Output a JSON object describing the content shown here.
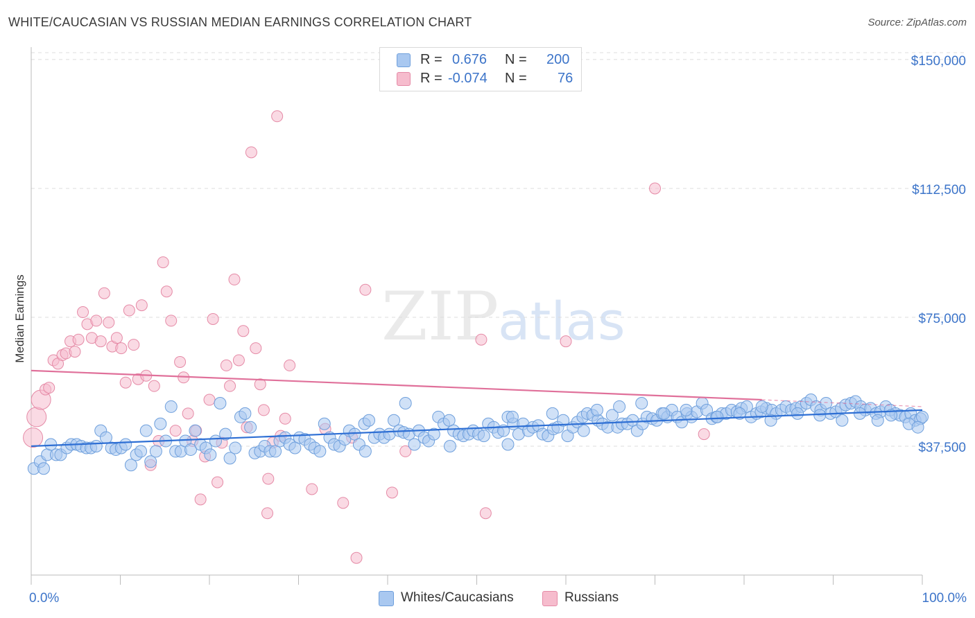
{
  "title": "WHITE/CAUCASIAN VS RUSSIAN MEDIAN EARNINGS CORRELATION CHART",
  "source": "Source: ZipAtlas.com",
  "watermark": {
    "zip": "ZIP",
    "atlas": "atlas"
  },
  "colors": {
    "blue_fill": "#a9c8f0",
    "blue_stroke": "#6e9fdc",
    "blue_line": "#2e6fd4",
    "pink_fill": "#f6bccd",
    "pink_stroke": "#e58aa6",
    "pink_line": "#e0709a",
    "tick_text": "#3c74c9",
    "grid": "#dcdcdc"
  },
  "legend": {
    "r_label": "R =",
    "n_label": "N =",
    "rows": [
      {
        "r": "0.676",
        "n": "200",
        "color": "blue"
      },
      {
        "r": "-0.074",
        "n": "76",
        "color": "pink"
      }
    ]
  },
  "bottom_legend": [
    {
      "label": "Whites/Caucasians",
      "color": "blue"
    },
    {
      "label": "Russians",
      "color": "pink"
    }
  ],
  "chart_data": {
    "type": "scatter",
    "title": "WHITE/CAUCASIAN VS RUSSIAN MEDIAN EARNINGS CORRELATION CHART",
    "xlabel": "",
    "ylabel": "Median Earnings",
    "xlim": [
      0,
      100
    ],
    "ylim": [
      0,
      152000
    ],
    "x_tick_labels": [
      "0.0%",
      "100.0%"
    ],
    "y_ticks": [
      37500,
      75000,
      112500,
      150000
    ],
    "y_tick_labels": [
      "$37,500",
      "$75,000",
      "$112,500",
      "$150,000"
    ],
    "grid": true,
    "legend_position": "top-center",
    "series": [
      {
        "name": "Whites/Caucasians",
        "r": 0.676,
        "n": 200,
        "trend": [
          [
            0,
            37500
          ],
          [
            100,
            48000
          ]
        ],
        "points": [
          [
            0.3,
            31000
          ],
          [
            1.0,
            33000
          ],
          [
            1.4,
            31000
          ],
          [
            1.8,
            35000
          ],
          [
            2.2,
            38000
          ],
          [
            2.8,
            35000
          ],
          [
            3.3,
            35000
          ],
          [
            4.0,
            37000
          ],
          [
            4.5,
            38000
          ],
          [
            5.1,
            38000
          ],
          [
            5.6,
            37500
          ],
          [
            6.2,
            37000
          ],
          [
            6.7,
            37000
          ],
          [
            7.3,
            37500
          ],
          [
            7.8,
            42000
          ],
          [
            8.4,
            40000
          ],
          [
            9.0,
            37000
          ],
          [
            9.5,
            36500
          ],
          [
            10.1,
            37000
          ],
          [
            10.6,
            38000
          ],
          [
            11.2,
            32000
          ],
          [
            11.8,
            35000
          ],
          [
            12.3,
            36000
          ],
          [
            12.9,
            42000
          ],
          [
            13.4,
            33000
          ],
          [
            14.0,
            36000
          ],
          [
            14.5,
            44000
          ],
          [
            15.1,
            39000
          ],
          [
            15.7,
            49000
          ],
          [
            16.2,
            36000
          ],
          [
            16.8,
            36000
          ],
          [
            17.3,
            39000
          ],
          [
            17.9,
            36500
          ],
          [
            18.4,
            42000
          ],
          [
            19.0,
            38000
          ],
          [
            19.6,
            37000
          ],
          [
            20.1,
            35000
          ],
          [
            20.7,
            39000
          ],
          [
            21.2,
            50000
          ],
          [
            21.8,
            41000
          ],
          [
            22.3,
            34000
          ],
          [
            22.9,
            37000
          ],
          [
            23.5,
            46000
          ],
          [
            24.0,
            47000
          ],
          [
            24.6,
            43000
          ],
          [
            25.1,
            35500
          ],
          [
            25.7,
            36000
          ],
          [
            26.2,
            37500
          ],
          [
            26.8,
            36000
          ],
          [
            27.4,
            36000
          ],
          [
            27.9,
            39000
          ],
          [
            28.5,
            40000
          ],
          [
            29.0,
            38000
          ],
          [
            29.6,
            37000
          ],
          [
            30.1,
            40000
          ],
          [
            30.7,
            39500
          ],
          [
            31.3,
            38000
          ],
          [
            31.8,
            37000
          ],
          [
            32.4,
            36000
          ],
          [
            32.9,
            44000
          ],
          [
            33.5,
            40000
          ],
          [
            34.0,
            38000
          ],
          [
            34.6,
            37500
          ],
          [
            35.2,
            39500
          ],
          [
            35.7,
            42000
          ],
          [
            36.3,
            41000
          ],
          [
            36.8,
            38000
          ],
          [
            37.4,
            44000
          ],
          [
            37.9,
            45000
          ],
          [
            38.5,
            40000
          ],
          [
            39.1,
            41000
          ],
          [
            39.6,
            40000
          ],
          [
            40.2,
            41000
          ],
          [
            40.7,
            45000
          ],
          [
            41.3,
            42000
          ],
          [
            41.8,
            41500
          ],
          [
            42.4,
            41000
          ],
          [
            43.0,
            38000
          ],
          [
            43.5,
            42000
          ],
          [
            44.1,
            40000
          ],
          [
            44.6,
            39000
          ],
          [
            45.2,
            41000
          ],
          [
            45.7,
            46000
          ],
          [
            46.3,
            44000
          ],
          [
            46.9,
            45000
          ],
          [
            47.4,
            42000
          ],
          [
            48.0,
            41000
          ],
          [
            48.5,
            40500
          ],
          [
            49.1,
            41000
          ],
          [
            49.6,
            42000
          ],
          [
            50.2,
            41000
          ],
          [
            50.8,
            40500
          ],
          [
            51.3,
            44000
          ],
          [
            51.9,
            43000
          ],
          [
            52.4,
            41500
          ],
          [
            53.0,
            42000
          ],
          [
            53.5,
            46000
          ],
          [
            54.1,
            44000
          ],
          [
            54.7,
            41000
          ],
          [
            55.2,
            44000
          ],
          [
            55.8,
            42000
          ],
          [
            56.3,
            43000
          ],
          [
            56.9,
            43500
          ],
          [
            57.4,
            41000
          ],
          [
            58.0,
            40500
          ],
          [
            58.6,
            42500
          ],
          [
            59.1,
            43000
          ],
          [
            59.7,
            45000
          ],
          [
            60.2,
            40500
          ],
          [
            60.8,
            43000
          ],
          [
            61.3,
            44500
          ],
          [
            61.9,
            46000
          ],
          [
            62.4,
            47000
          ],
          [
            63.0,
            46500
          ],
          [
            63.6,
            45000
          ],
          [
            64.1,
            44000
          ],
          [
            64.7,
            43000
          ],
          [
            65.2,
            46500
          ],
          [
            65.8,
            43000
          ],
          [
            66.3,
            44000
          ],
          [
            66.9,
            44000
          ],
          [
            67.5,
            45000
          ],
          [
            68.0,
            42000
          ],
          [
            68.6,
            44000
          ],
          [
            69.1,
            46000
          ],
          [
            69.7,
            45500
          ],
          [
            70.2,
            45000
          ],
          [
            70.8,
            47000
          ],
          [
            71.4,
            46000
          ],
          [
            71.9,
            48000
          ],
          [
            72.5,
            46000
          ],
          [
            73.0,
            44500
          ],
          [
            73.6,
            47000
          ],
          [
            74.1,
            46000
          ],
          [
            74.7,
            47500
          ],
          [
            75.3,
            50000
          ],
          [
            75.8,
            48000
          ],
          [
            76.4,
            45500
          ],
          [
            76.9,
            46000
          ],
          [
            77.5,
            47000
          ],
          [
            78.0,
            47000
          ],
          [
            78.6,
            48000
          ],
          [
            79.2,
            47500
          ],
          [
            79.7,
            48500
          ],
          [
            80.3,
            49000
          ],
          [
            80.8,
            46000
          ],
          [
            81.4,
            47000
          ],
          [
            81.9,
            47500
          ],
          [
            82.5,
            48500
          ],
          [
            83.1,
            48000
          ],
          [
            83.6,
            47000
          ],
          [
            84.2,
            48000
          ],
          [
            84.7,
            49000
          ],
          [
            85.3,
            48000
          ],
          [
            85.8,
            48500
          ],
          [
            86.4,
            49000
          ],
          [
            87.0,
            50000
          ],
          [
            87.5,
            51000
          ],
          [
            88.1,
            49000
          ],
          [
            88.6,
            48000
          ],
          [
            89.2,
            50000
          ],
          [
            89.7,
            47000
          ],
          [
            90.3,
            47500
          ],
          [
            90.9,
            48500
          ],
          [
            91.4,
            49500
          ],
          [
            92.0,
            50000
          ],
          [
            92.5,
            50500
          ],
          [
            93.1,
            49000
          ],
          [
            93.6,
            48000
          ],
          [
            94.2,
            48500
          ],
          [
            94.8,
            47000
          ],
          [
            95.3,
            47500
          ],
          [
            95.9,
            49000
          ],
          [
            96.4,
            48000
          ],
          [
            97.0,
            47000
          ],
          [
            97.5,
            46500
          ],
          [
            98.1,
            46000
          ],
          [
            98.7,
            47000
          ],
          [
            99.2,
            45000
          ],
          [
            99.8,
            45500
          ],
          [
            100.0,
            46000
          ],
          [
            37.5,
            36000
          ],
          [
            42.0,
            50000
          ],
          [
            54.0,
            46000
          ],
          [
            58.5,
            47000
          ],
          [
            63.5,
            48000
          ],
          [
            66.0,
            49000
          ],
          [
            68.5,
            50000
          ],
          [
            73.5,
            48000
          ],
          [
            77.0,
            46000
          ],
          [
            79.5,
            47000
          ],
          [
            82.0,
            49000
          ],
          [
            86.0,
            47000
          ],
          [
            88.5,
            46500
          ],
          [
            91.0,
            45000
          ],
          [
            93.0,
            47000
          ],
          [
            95.0,
            45000
          ],
          [
            96.5,
            46500
          ],
          [
            98.5,
            44000
          ],
          [
            99.5,
            43000
          ],
          [
            83.0,
            45000
          ],
          [
            47.0,
            37500
          ],
          [
            53.5,
            38000
          ],
          [
            62.0,
            42000
          ],
          [
            71.0,
            47000
          ]
        ]
      },
      {
        "name": "Russians",
        "r": -0.074,
        "n": 76,
        "trend": [
          [
            0,
            59500
          ],
          [
            82,
            51000
          ]
        ],
        "trend_extension": [
          [
            82,
            51000
          ],
          [
            100,
            49000
          ]
        ],
        "points": [
          [
            0.2,
            40000
          ],
          [
            0.6,
            46000
          ],
          [
            1.1,
            51000
          ],
          [
            1.6,
            54000
          ],
          [
            2.0,
            54500
          ],
          [
            2.5,
            62500
          ],
          [
            3.0,
            61500
          ],
          [
            3.5,
            64000
          ],
          [
            3.9,
            64500
          ],
          [
            4.4,
            68000
          ],
          [
            4.9,
            65000
          ],
          [
            5.3,
            68500
          ],
          [
            5.8,
            76500
          ],
          [
            6.3,
            73000
          ],
          [
            6.8,
            69000
          ],
          [
            7.3,
            74000
          ],
          [
            7.8,
            68000
          ],
          [
            8.2,
            82000
          ],
          [
            8.7,
            73500
          ],
          [
            9.1,
            66500
          ],
          [
            9.6,
            69000
          ],
          [
            10.1,
            66000
          ],
          [
            10.6,
            56000
          ],
          [
            11.0,
            77000
          ],
          [
            11.5,
            67000
          ],
          [
            12.0,
            57000
          ],
          [
            12.4,
            78500
          ],
          [
            12.9,
            58000
          ],
          [
            13.4,
            32000
          ],
          [
            13.8,
            55000
          ],
          [
            14.3,
            39000
          ],
          [
            14.8,
            91000
          ],
          [
            15.2,
            82500
          ],
          [
            15.7,
            74000
          ],
          [
            16.2,
            42000
          ],
          [
            16.7,
            62000
          ],
          [
            17.1,
            57500
          ],
          [
            17.6,
            47000
          ],
          [
            18.1,
            39000
          ],
          [
            18.5,
            42000
          ],
          [
            19.0,
            22000
          ],
          [
            19.5,
            34500
          ],
          [
            20.0,
            51000
          ],
          [
            20.4,
            74500
          ],
          [
            20.9,
            27000
          ],
          [
            21.4,
            38500
          ],
          [
            21.9,
            61000
          ],
          [
            22.3,
            55000
          ],
          [
            22.8,
            86000
          ],
          [
            23.3,
            62500
          ],
          [
            23.8,
            71000
          ],
          [
            24.2,
            43000
          ],
          [
            24.7,
            123000
          ],
          [
            25.2,
            66000
          ],
          [
            25.7,
            55500
          ],
          [
            26.1,
            48000
          ],
          [
            26.6,
            28000
          ],
          [
            27.1,
            38500
          ],
          [
            27.6,
            133500
          ],
          [
            28.0,
            40500
          ],
          [
            28.5,
            45500
          ],
          [
            29.0,
            61000
          ],
          [
            31.5,
            25000
          ],
          [
            33.0,
            42500
          ],
          [
            35.0,
            21000
          ],
          [
            36.0,
            40000
          ],
          [
            37.5,
            83000
          ],
          [
            40.5,
            24000
          ],
          [
            42.0,
            36000
          ],
          [
            50.5,
            68500
          ],
          [
            51.0,
            18000
          ],
          [
            70.0,
            112500
          ],
          [
            75.5,
            41000
          ],
          [
            26.5,
            18000
          ],
          [
            36.5,
            5000
          ],
          [
            60.0,
            68000
          ]
        ]
      }
    ]
  }
}
